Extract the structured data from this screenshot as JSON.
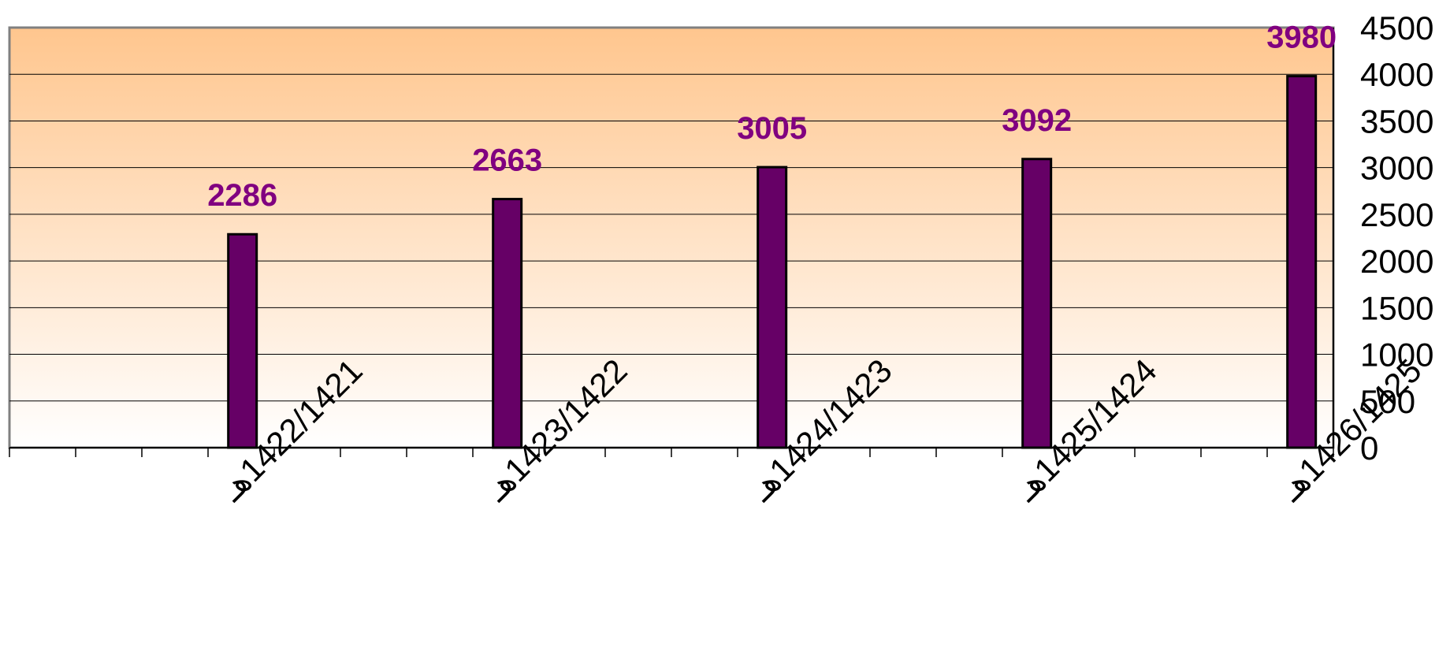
{
  "chart_data": {
    "type": "bar",
    "categories": [
      "1422/1421هـ",
      "1423/1422هـ",
      "1424/1423هـ",
      "1425/1424هـ",
      "1426/1425هـ"
    ],
    "values": [
      2286,
      2663,
      3005,
      3092,
      3980
    ],
    "data_labels": [
      "2286",
      "2663",
      "3005",
      "3092",
      "3980"
    ],
    "y_ticks": [
      "0",
      "500",
      "1000",
      "1500",
      "2000",
      "2500",
      "3000",
      "3500",
      "4000",
      "4500"
    ],
    "ylim": [
      0,
      4500
    ],
    "y_axis_side": "right",
    "grid": true,
    "title": "",
    "xlabel": "",
    "ylabel": ""
  },
  "colors": {
    "bar_fill": "#660066",
    "bar_stroke": "#000000",
    "data_label": "#800080",
    "plot_gradient_top": "#ffc68e",
    "plot_gradient_bottom": "#ffffff",
    "gridline": "#000000",
    "text": "#000000"
  }
}
